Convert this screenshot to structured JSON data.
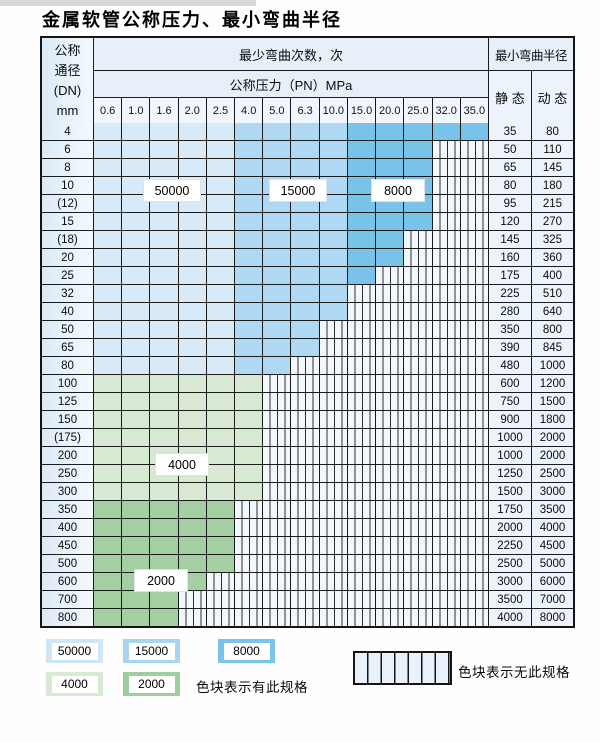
{
  "page": {
    "title": "金属软管公称压力、最小弯曲半径"
  },
  "table": {
    "dn_header_lines": [
      "公称",
      "通径",
      "(DN)",
      "mm"
    ],
    "cycles_header": "最少弯曲次数，次",
    "pressure_header": "公称压力（PN）MPa",
    "radius_header": "最小弯曲半径",
    "static_header": "静 态",
    "dynamic_header": "动 态",
    "pressures": [
      "0.6",
      "1.0",
      "1.6",
      "2.0",
      "2.5",
      "4.0",
      "5.0",
      "6.3",
      "10.0",
      "15.0",
      "20.0",
      "25.0",
      "32.0",
      "35.0"
    ],
    "blue_zone_breaks": [
      5,
      9
    ],
    "cycle_zones": {
      "blue_50000_pressure_range": "0.6-2.5",
      "blue_15000_pressure_range": "4.0-10.0",
      "blue_8000_pressure_range": "15.0-35.0",
      "green_4000_dn_range": "100-300",
      "green_2000_dn_range": "350-800"
    },
    "rows": [
      {
        "dn": "4",
        "colored": 14,
        "palette": "blue",
        "static": "35",
        "dynamic": "80"
      },
      {
        "dn": "6",
        "colored": 12,
        "palette": "blue",
        "static": "50",
        "dynamic": "110"
      },
      {
        "dn": "8",
        "colored": 12,
        "palette": "blue",
        "static": "65",
        "dynamic": "145"
      },
      {
        "dn": "10",
        "colored": 12,
        "palette": "blue",
        "static": "80",
        "dynamic": "180"
      },
      {
        "dn": "(12)",
        "colored": 12,
        "palette": "blue",
        "static": "95",
        "dynamic": "215"
      },
      {
        "dn": "15",
        "colored": 12,
        "palette": "blue",
        "static": "120",
        "dynamic": "270"
      },
      {
        "dn": "(18)",
        "colored": 11,
        "palette": "blue",
        "static": "145",
        "dynamic": "325"
      },
      {
        "dn": "20",
        "colored": 11,
        "palette": "blue",
        "static": "160",
        "dynamic": "360"
      },
      {
        "dn": "25",
        "colored": 10,
        "palette": "blue",
        "static": "175",
        "dynamic": "400"
      },
      {
        "dn": "32",
        "colored": 9,
        "palette": "blue",
        "static": "225",
        "dynamic": "510"
      },
      {
        "dn": "40",
        "colored": 9,
        "palette": "blue",
        "static": "280",
        "dynamic": "640"
      },
      {
        "dn": "50",
        "colored": 8,
        "palette": "blue",
        "static": "350",
        "dynamic": "800"
      },
      {
        "dn": "65",
        "colored": 8,
        "palette": "blue",
        "static": "390",
        "dynamic": "845"
      },
      {
        "dn": "80",
        "colored": 7,
        "palette": "blue",
        "static": "480",
        "dynamic": "1000"
      },
      {
        "dn": "100",
        "colored": 6,
        "palette": "green-light",
        "static": "600",
        "dynamic": "1200"
      },
      {
        "dn": "125",
        "colored": 6,
        "palette": "green-light",
        "static": "750",
        "dynamic": "1500"
      },
      {
        "dn": "150",
        "colored": 6,
        "palette": "green-light",
        "static": "900",
        "dynamic": "1800"
      },
      {
        "dn": "(175)",
        "colored": 6,
        "palette": "green-light",
        "static": "1000",
        "dynamic": "2000"
      },
      {
        "dn": "200",
        "colored": 6,
        "palette": "green-light",
        "static": "1000",
        "dynamic": "2000"
      },
      {
        "dn": "250",
        "colored": 6,
        "palette": "green-light",
        "static": "1250",
        "dynamic": "2500"
      },
      {
        "dn": "300",
        "colored": 6,
        "palette": "green-light",
        "static": "1500",
        "dynamic": "3000"
      },
      {
        "dn": "350",
        "colored": 5,
        "palette": "green-dark",
        "static": "1750",
        "dynamic": "3500"
      },
      {
        "dn": "400",
        "colored": 5,
        "palette": "green-dark",
        "static": "2000",
        "dynamic": "4000"
      },
      {
        "dn": "450",
        "colored": 5,
        "palette": "green-dark",
        "static": "2250",
        "dynamic": "4500"
      },
      {
        "dn": "500",
        "colored": 5,
        "palette": "green-dark",
        "static": "2500",
        "dynamic": "5000"
      },
      {
        "dn": "600",
        "colored": 4,
        "palette": "green-dark",
        "static": "3000",
        "dynamic": "6000"
      },
      {
        "dn": "700",
        "colored": 3,
        "palette": "green-dark",
        "static": "3500",
        "dynamic": "7000"
      },
      {
        "dn": "800",
        "colored": 3,
        "palette": "green-dark",
        "static": "4000",
        "dynamic": "8000"
      }
    ]
  },
  "overlay_labels": {
    "l50000": "50000",
    "l15000": "15000",
    "l8000": "8000",
    "l4000": "4000",
    "l2000": "2000"
  },
  "legend": {
    "items": [
      {
        "label": "50000",
        "color": "#cfe6f7"
      },
      {
        "label": "15000",
        "color": "#a9d5f1"
      },
      {
        "label": "8000",
        "color": "#7cc3ec"
      },
      {
        "label": "4000",
        "color": "#d8ead4"
      },
      {
        "label": "2000",
        "color": "#9ccf9d"
      }
    ],
    "has_spec_note": "色块表示有此规格",
    "no_spec_note": "色块表示无此规格"
  },
  "colors": {
    "cycles_50000": "#d8eaf8",
    "cycles_15000": "#aed8f3",
    "cycles_8000": "#79c2ea",
    "cycles_4000": "#d7e8d3",
    "cycles_2000": "#a4cfa2",
    "grid_line": "#1b1b1b"
  }
}
